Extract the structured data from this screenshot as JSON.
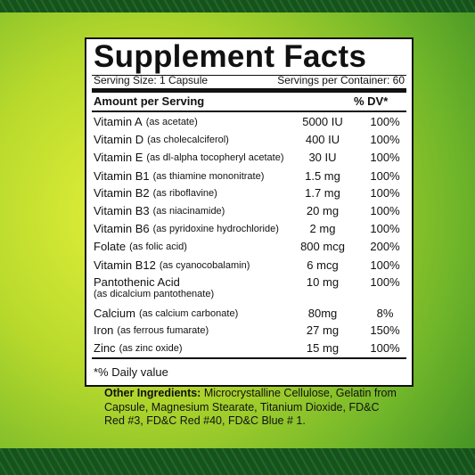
{
  "label": {
    "title": "Supplement Facts",
    "serving_size": "Serving Size: 1 Capsule",
    "servings_per_container": "Servings per Container: 60",
    "header_amount": "Amount per Serving",
    "header_dv": "% DV*",
    "rows": [
      {
        "name": "Vitamin A",
        "form": "(as acetate)",
        "amount": "5000 IU",
        "dv": "100%"
      },
      {
        "name": "Vitamin D",
        "form": "(as cholecalciferol)",
        "amount": "400 IU",
        "dv": "100%"
      },
      {
        "name": "Vitamin E",
        "form": "(as dl-alpha tocopheryl acetate)",
        "amount": "30 IU",
        "dv": "100%"
      },
      {
        "name": "Vitamin B1",
        "form": "(as thiamine mononitrate)",
        "amount": "1.5 mg",
        "dv": "100%"
      },
      {
        "name": "Vitamin B2",
        "form": "(as riboflavine)",
        "amount": "1.7 mg",
        "dv": "100%"
      },
      {
        "name": "Vitamin B3",
        "form": "(as niacinamide)",
        "amount": "20 mg",
        "dv": "100%"
      },
      {
        "name": "Vitamin B6",
        "form": "(as pyridoxine hydrochloride)",
        "amount": "2 mg",
        "dv": "100%"
      },
      {
        "name": "Folate",
        "form": "(as folic acid)",
        "amount": "800 mcg",
        "dv": "200%"
      },
      {
        "name": "Vitamin B12",
        "form": "(as cyanocobalamin)",
        "amount": "6 mcg",
        "dv": "100%"
      },
      {
        "name": "Pantothenic Acid",
        "form": "(as dicalcium pantothenate)",
        "amount": "10 mg",
        "dv": "100%"
      },
      {
        "name": "Calcium",
        "form": "(as calcium carbonate)",
        "amount": "80mg",
        "dv": "8%"
      },
      {
        "name": "Iron",
        "form": "(as ferrous fumarate)",
        "amount": "27 mg",
        "dv": "150%"
      },
      {
        "name": "Zinc",
        "form": "(as zinc oxide)",
        "amount": "15 mg",
        "dv": "100%"
      }
    ],
    "footnote": "*% Daily value"
  },
  "other_ingredients": {
    "heading": "Other Ingredients:",
    "text": "Microcrystalline Cellulose, Gelatin from Capsule, Magnesium Stearate, Titanium Dioxide, FD&C Red #3, FD&C Red #40, FD&C Blue # 1."
  }
}
